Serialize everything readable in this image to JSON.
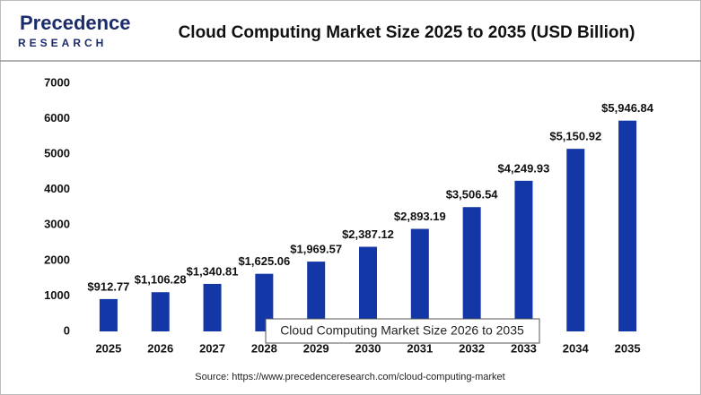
{
  "header": {
    "logo_name": "Precedence",
    "logo_sub": "RESEARCH"
  },
  "chart_data": {
    "type": "bar",
    "title": "Cloud Computing Market Size 2025 to 2035 (USD Billion)",
    "categories": [
      "2025",
      "2026",
      "2027",
      "2028",
      "2029",
      "2030",
      "2031",
      "2032",
      "2033",
      "2034",
      "2035"
    ],
    "values": [
      912.77,
      1106.28,
      1340.81,
      1625.06,
      1969.57,
      2387.12,
      2893.19,
      3506.54,
      4249.93,
      5150.92,
      5946.84
    ],
    "value_labels": [
      "$912.77",
      "$1,106.28",
      "$1,340.81",
      "$1,625.06",
      "$1,969.57",
      "$2,387.12",
      "$2,893.19",
      "$3,506.54",
      "$4,249.93",
      "$5,150.92",
      "$5,946.84"
    ],
    "color": "#1437a8",
    "ylim": [
      0,
      7000
    ],
    "yticks": [
      0,
      1000,
      2000,
      3000,
      4000,
      5000,
      6000,
      7000
    ],
    "annotation": "Cloud Computing Market Size 2026 to 2035",
    "source": "Source: https://www.precedenceresearch.com/cloud-computing-market"
  }
}
